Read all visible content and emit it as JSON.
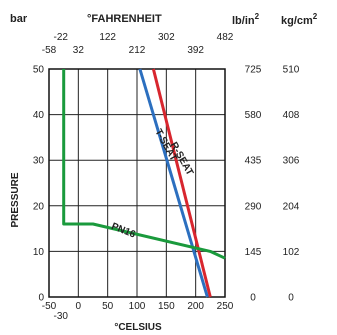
{
  "chart_data": {
    "type": "line",
    "headers": {
      "bar": "bar",
      "fahrenheit": "°FAHRENHEIT",
      "lbin2_main": "lb/in",
      "lbin2_sup": "2",
      "kgcm2_main": "kg/cm",
      "kgcm2_sup": "2"
    },
    "ylabel": "PRESSURE",
    "xlabel": "°CELSIUS",
    "xlim": [
      -50,
      250
    ],
    "ylim": [
      0,
      50
    ],
    "grid": true,
    "celsius_ticks": [
      "-50",
      "0",
      "50",
      "100",
      "150",
      "200",
      "250"
    ],
    "celsius_tick_values": [
      -50,
      0,
      50,
      100,
      150,
      200,
      250
    ],
    "celsius_extra": {
      "label": "-30",
      "value": -30
    },
    "fahrenheit_ticks_upper": [
      {
        "label": "-22",
        "value": -30
      },
      {
        "label": "122",
        "value": 50
      },
      {
        "label": "302",
        "value": 150
      },
      {
        "label": "482",
        "value": 250
      }
    ],
    "fahrenheit_ticks_lower": [
      {
        "label": "-58",
        "value": -50
      },
      {
        "label": "32",
        "value": 0
      },
      {
        "label": "212",
        "value": 100
      },
      {
        "label": "392",
        "value": 200
      }
    ],
    "bar_ticks": [
      "0",
      "10",
      "20",
      "30",
      "40",
      "50"
    ],
    "bar_tick_values": [
      0,
      10,
      20,
      30,
      40,
      50
    ],
    "psi_ticks": [
      "0",
      "145",
      "290",
      "435",
      "580",
      "725"
    ],
    "kgcm2_ticks": [
      "0",
      "102",
      "204",
      "306",
      "408",
      "510"
    ],
    "series": [
      {
        "name": "R-SEAT",
        "color": "#d8262e",
        "x": [
          128,
          225
        ],
        "y": [
          50,
          0
        ]
      },
      {
        "name": "T-SEAT",
        "color": "#2c6fbf",
        "x": [
          105,
          220
        ],
        "y": [
          50,
          0
        ]
      },
      {
        "name": "PN16",
        "color": "#1a9a3c",
        "x": [
          -25,
          -25,
          -25,
          25,
          225,
          250
        ],
        "y": [
          50,
          16,
          16,
          16,
          10,
          8.5
        ]
      }
    ]
  }
}
